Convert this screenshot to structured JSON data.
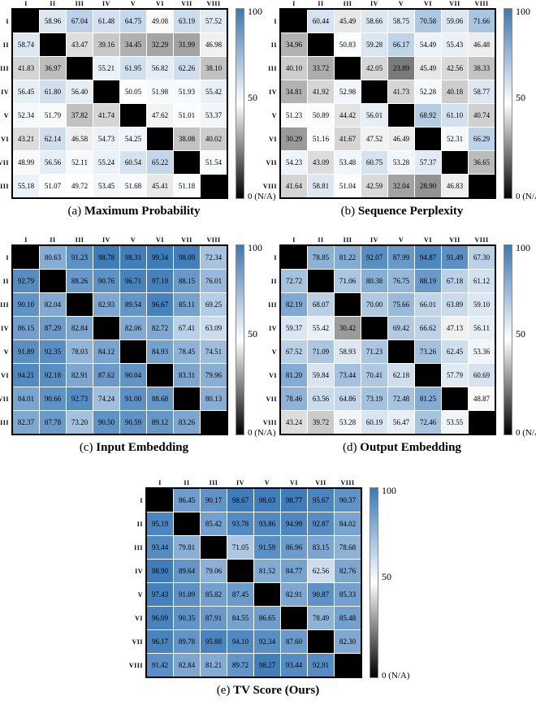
{
  "page": {
    "background": "#ffffff"
  },
  "colorbar": {
    "top_label": "100",
    "mid_label": "50",
    "bottom_label": "0 (N/A)",
    "max_color": "#3a79b8",
    "mid_color": "#ffffff",
    "min_color": "#000000"
  },
  "axis_labels": [
    "I",
    "II",
    "III",
    "IV",
    "V",
    "VI",
    "VII",
    "VIII"
  ],
  "chart_data": [
    {
      "type": "heatmap",
      "caption_prefix": "(a)",
      "caption_title": "Maximum Probability",
      "x_categories": [
        "I",
        "II",
        "III",
        "IV",
        "V",
        "VI",
        "VII",
        "VIII"
      ],
      "y_categories": [
        "I",
        "II",
        "III",
        "IV",
        "V",
        "VI",
        "VII",
        "VIII"
      ],
      "value_range": [
        0,
        100
      ],
      "diagonal": "N/A",
      "values": [
        [
          null,
          58.96,
          67.04,
          61.48,
          64.75,
          49.08,
          63.19,
          57.52
        ],
        [
          58.74,
          null,
          43.47,
          39.16,
          34.45,
          32.29,
          31.99,
          46.98
        ],
        [
          41.83,
          36.97,
          null,
          55.21,
          61.95,
          56.82,
          62.26,
          38.1
        ],
        [
          56.45,
          61.8,
          56.4,
          null,
          50.05,
          51.98,
          51.93,
          55.42
        ],
        [
          52.34,
          51.79,
          37.82,
          41.74,
          null,
          47.62,
          51.01,
          53.37
        ],
        [
          43.21,
          62.14,
          46.58,
          54.73,
          54.25,
          null,
          38.08,
          40.02
        ],
        [
          48.99,
          56.56,
          52.11,
          55.24,
          60.54,
          65.22,
          null,
          51.54
        ],
        [
          55.18,
          51.07,
          49.72,
          53.45,
          51.68,
          45.41,
          51.18,
          null
        ]
      ]
    },
    {
      "type": "heatmap",
      "caption_prefix": "(b)",
      "caption_title": "Sequence Perplexity",
      "x_categories": [
        "I",
        "II",
        "III",
        "IV",
        "V",
        "VI",
        "VII",
        "VIII"
      ],
      "y_categories": [
        "I",
        "II",
        "III",
        "IV",
        "V",
        "VI",
        "VII",
        "VIII"
      ],
      "value_range": [
        0,
        100
      ],
      "diagonal": "N/A",
      "values": [
        [
          null,
          60.44,
          45.49,
          58.66,
          58.75,
          70.58,
          59.06,
          71.66
        ],
        [
          34.96,
          null,
          50.83,
          59.28,
          66.17,
          54.49,
          55.43,
          46.48
        ],
        [
          40.1,
          33.72,
          null,
          42.05,
          23.89,
          45.49,
          42.56,
          38.33
        ],
        [
          34.81,
          41.92,
          52.98,
          null,
          41.73,
          52.28,
          40.18,
          58.77
        ],
        [
          51.23,
          50.89,
          44.42,
          56.01,
          null,
          68.92,
          61.1,
          40.74
        ],
        [
          30.29,
          51.16,
          41.67,
          47.52,
          46.49,
          null,
          52.31,
          66.29
        ],
        [
          54.23,
          43.09,
          53.48,
          60.75,
          53.28,
          57.37,
          null,
          36.65
        ],
        [
          41.64,
          58.81,
          51.04,
          42.59,
          32.04,
          28.9,
          46.83,
          null
        ]
      ]
    },
    {
      "type": "heatmap",
      "caption_prefix": "(c)",
      "caption_title": "Input Embedding",
      "x_categories": [
        "I",
        "II",
        "III",
        "IV",
        "V",
        "VI",
        "VII",
        "VIII"
      ],
      "y_categories": [
        "I",
        "II",
        "III",
        "IV",
        "V",
        "VI",
        "VII",
        "VIII"
      ],
      "value_range": [
        0,
        100
      ],
      "diagonal": "N/A",
      "values": [
        [
          null,
          80.63,
          91.23,
          98.78,
          98.31,
          99.34,
          98.09,
          72.34
        ],
        [
          92.79,
          null,
          88.26,
          90.76,
          96.71,
          97.19,
          88.15,
          76.01
        ],
        [
          90.1,
          82.04,
          null,
          82.93,
          89.54,
          96.67,
          85.11,
          69.25
        ],
        [
          86.15,
          87.29,
          82.84,
          null,
          82.06,
          82.72,
          67.41,
          63.09
        ],
        [
          91.89,
          92.35,
          78.03,
          84.12,
          null,
          84.93,
          78.45,
          74.51
        ],
        [
          94.21,
          92.18,
          82.91,
          87.62,
          90.04,
          null,
          83.31,
          79.96
        ],
        [
          84.01,
          90.66,
          92.73,
          74.24,
          91.0,
          88.68,
          null,
          80.13
        ],
        [
          82.37,
          87.78,
          73.2,
          90.5,
          90.59,
          89.12,
          83.26,
          null
        ]
      ]
    },
    {
      "type": "heatmap",
      "caption_prefix": "(d)",
      "caption_title": "Output Embedding",
      "x_categories": [
        "I",
        "II",
        "III",
        "IV",
        "V",
        "VI",
        "VII",
        "VIII"
      ],
      "y_categories": [
        "I",
        "II",
        "III",
        "IV",
        "V",
        "VI",
        "VII",
        "VIII"
      ],
      "value_range": [
        0,
        100
      ],
      "diagonal": "N/A",
      "values": [
        [
          null,
          78.85,
          81.22,
          92.07,
          87.99,
          94.87,
          91.49,
          67.3
        ],
        [
          72.72,
          null,
          71.06,
          80.38,
          76.75,
          88.19,
          67.18,
          61.12
        ],
        [
          82.19,
          68.07,
          null,
          70.0,
          75.66,
          66.01,
          63.89,
          59.1
        ],
        [
          59.37,
          55.42,
          30.42,
          null,
          69.42,
          66.62,
          47.13,
          56.11
        ],
        [
          67.52,
          71.09,
          58.93,
          71.23,
          null,
          73.26,
          62.45,
          53.36
        ],
        [
          81.2,
          59.84,
          73.44,
          70.41,
          62.18,
          null,
          57.79,
          60.69
        ],
        [
          78.46,
          63.56,
          64.86,
          73.19,
          72.48,
          81.25,
          null,
          48.87
        ],
        [
          43.24,
          39.72,
          53.28,
          60.19,
          56.47,
          72.46,
          53.55,
          null
        ]
      ]
    },
    {
      "type": "heatmap",
      "caption_prefix": "(e)",
      "caption_title": "TV Score (Ours)",
      "x_categories": [
        "I",
        "II",
        "III",
        "IV",
        "V",
        "VI",
        "VII",
        "VIII"
      ],
      "y_categories": [
        "I",
        "II",
        "III",
        "IV",
        "V",
        "VI",
        "VII",
        "VIII"
      ],
      "value_range": [
        0,
        100
      ],
      "diagonal": "N/A",
      "values": [
        [
          null,
          86.45,
          90.17,
          98.67,
          98.03,
          98.77,
          95.67,
          90.37
        ],
        [
          95.19,
          null,
          85.42,
          93.78,
          93.86,
          94.99,
          92.87,
          84.02
        ],
        [
          93.44,
          79.81,
          null,
          71.05,
          91.59,
          86.96,
          83.15,
          78.68
        ],
        [
          98.9,
          89.64,
          79.06,
          null,
          81.52,
          84.77,
          62.56,
          82.76
        ],
        [
          97.43,
          91.09,
          85.82,
          87.45,
          null,
          82.91,
          90.87,
          85.33
        ],
        [
          96.09,
          90.35,
          87.91,
          84.55,
          86.65,
          null,
          78.49,
          85.48
        ],
        [
          96.17,
          89.78,
          95.88,
          94.1,
          92.34,
          87.6,
          null,
          82.3
        ],
        [
          91.42,
          82.84,
          81.21,
          89.72,
          98.27,
          93.44,
          92.91,
          null
        ]
      ]
    }
  ]
}
